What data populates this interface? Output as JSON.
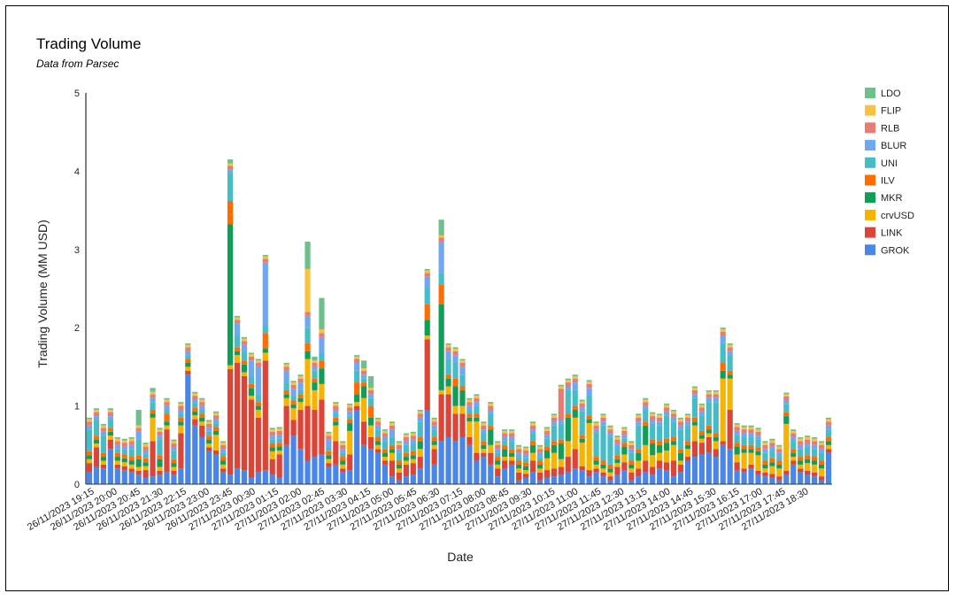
{
  "chart_data": {
    "type": "bar",
    "stacked": true,
    "title": "Trading Volume",
    "subtitle": "Data from Parsec",
    "xlabel": "Date",
    "ylabel": "Trading Volume (MM USD)",
    "ylim": [
      0,
      5
    ],
    "yticks": [
      0,
      1,
      2,
      3,
      4,
      5
    ],
    "grid": false,
    "legend_position": "right",
    "tick_labels": [
      "26/11/2023 19:15",
      "26/11/2023 20:00",
      "26/11/2023 20:45",
      "26/11/2023 21:30",
      "26/11/2023 22:15",
      "26/11/2023 23:00",
      "26/11/2023 23:45",
      "27/11/2023 00:30",
      "27/11/2023 01:15",
      "27/11/2023 02:00",
      "27/11/2023 02:45",
      "27/11/2023 03:30",
      "27/11/2023 04:15",
      "27/11/2023 05:00",
      "27/11/2023 05:45",
      "27/11/2023 06:30",
      "27/11/2023 07:15",
      "27/11/2023 08:00",
      "27/11/2023 08:45",
      "27/11/2023 09:30",
      "27/11/2023 10:15",
      "27/11/2023 11:00",
      "27/11/2023 11:45",
      "27/11/2023 12:30",
      "27/11/2023 13:15",
      "27/11/2023 14:00",
      "27/11/2023 14:45",
      "27/11/2023 15:30",
      "27/11/2023 16:15",
      "27/11/2023 17:00",
      "27/11/2023 17:45",
      "27/11/2023 18:30"
    ],
    "series": [
      {
        "name": "GROK",
        "color": "#4a86e8",
        "values": [
          0.15,
          0.22,
          0.2,
          0.45,
          0.2,
          0.18,
          0.15,
          0.12,
          0.08,
          0.1,
          0.12,
          0.15,
          0.12,
          0.2,
          1.4,
          0.75,
          0.6,
          0.42,
          0.38,
          0.15,
          0.12,
          0.2,
          0.18,
          0.08,
          0.15,
          0.18,
          0.12,
          0.08,
          0.5,
          0.62,
          0.45,
          0.3,
          0.35,
          0.38,
          0.22,
          0.25,
          0.15,
          0.18,
          0.95,
          0.5,
          0.45,
          0.4,
          0.25,
          0.1,
          0.05,
          0.1,
          0.12,
          0.2,
          0.95,
          0.25,
          0.55,
          0.6,
          0.55,
          0.6,
          0.5,
          0.3,
          0.35,
          0.25,
          0.1,
          0.2,
          0.25,
          0.05,
          0.08,
          0.15,
          0.05,
          0.08,
          0.1,
          0.12,
          0.15,
          0.2,
          0.18,
          0.1,
          0.15,
          0.1,
          0.05,
          0.12,
          0.18,
          0.05,
          0.1,
          0.15,
          0.12,
          0.2,
          0.18,
          0.1,
          0.15,
          0.3,
          0.35,
          0.38,
          0.4,
          0.35,
          0.5,
          0.45,
          0.18,
          0.15,
          0.2,
          0.12,
          0.1,
          0.08,
          0.05,
          0.12,
          0.25,
          0.15,
          0.12,
          0.1,
          0.05,
          0.4
        ]
      },
      {
        "name": "LINK",
        "color": "#db4437",
        "values": [
          0.12,
          0.25,
          0.05,
          0.12,
          0.05,
          0.05,
          0.05,
          0.05,
          0.1,
          0.45,
          0.05,
          0.55,
          0.05,
          0.45,
          0.05,
          0.08,
          0.15,
          0.05,
          0.05,
          0.05,
          1.35,
          1.35,
          1.2,
          1.0,
          0.7,
          1.4,
          0.2,
          0.3,
          0.5,
          0.2,
          0.5,
          0.7,
          0.6,
          0.7,
          0.05,
          0.3,
          0.05,
          0.2,
          0.05,
          0.3,
          0.15,
          0.05,
          0.05,
          0.2,
          0.1,
          0.15,
          0.15,
          0.15,
          0.9,
          0.2,
          0.6,
          0.55,
          0.35,
          0.3,
          0.1,
          0.1,
          0.05,
          0.15,
          0.1,
          0.1,
          0.05,
          0.1,
          0.05,
          0.15,
          0.1,
          0.1,
          0.1,
          0.1,
          0.2,
          0.25,
          0.05,
          0.08,
          0.05,
          0.05,
          0.05,
          0.1,
          0.1,
          0.1,
          0.1,
          0.15,
          0.1,
          0.1,
          0.1,
          0.2,
          0.1,
          0.05,
          0.2,
          0.15,
          0.2,
          0.1,
          0.05,
          0.5,
          0.1,
          0.05,
          0.05,
          0.05,
          0.05,
          0.05,
          0.05,
          0.05,
          0.05,
          0.05,
          0.05,
          0.05,
          0.05,
          0.05
        ]
      },
      {
        "name": "crvUSD",
        "color": "#f4b400",
        "values": [
          0.05,
          0.05,
          0.05,
          0.05,
          0.05,
          0.05,
          0.05,
          0.05,
          0.05,
          0.3,
          0.05,
          0.05,
          0.05,
          0.1,
          0.05,
          0.05,
          0.05,
          0.05,
          0.2,
          0.05,
          0.05,
          0.1,
          0.05,
          0.05,
          0.1,
          0.1,
          0.1,
          0.05,
          0.1,
          0.15,
          0.1,
          0.6,
          0.25,
          0.2,
          0.05,
          0.2,
          0.05,
          0.3,
          0.05,
          0.3,
          0.15,
          0.05,
          0.05,
          0.1,
          0.05,
          0.05,
          0.05,
          0.1,
          0.05,
          0.05,
          0.05,
          0.1,
          0.1,
          0.1,
          0.2,
          0.4,
          0.05,
          0.1,
          0.05,
          0.05,
          0.05,
          0.05,
          0.05,
          0.1,
          0.05,
          0.15,
          0.2,
          0.1,
          0.2,
          0.4,
          0.3,
          0.6,
          0.05,
          0.05,
          0.05,
          0.05,
          0.1,
          0.05,
          0.1,
          0.2,
          0.15,
          0.1,
          0.15,
          0.2,
          0.05,
          0.1,
          0.2,
          0.05,
          0.05,
          0.1,
          0.8,
          0.4,
          0.1,
          0.2,
          0.15,
          0.2,
          0.05,
          0.1,
          0.1,
          0.6,
          0.05,
          0.05,
          0.1,
          0.1,
          0.1,
          0.05
        ]
      },
      {
        "name": "MKR",
        "color": "#0f9d58",
        "values": [
          0.05,
          0.05,
          0.05,
          0.05,
          0.05,
          0.05,
          0.05,
          0.1,
          0.05,
          0.05,
          0.1,
          0.05,
          0.05,
          0.05,
          0.05,
          0.05,
          0.05,
          0.05,
          0.05,
          0.05,
          1.8,
          0.05,
          0.1,
          0.1,
          0.05,
          0.05,
          0.05,
          0.05,
          0.05,
          0.05,
          0.05,
          0.1,
          0.1,
          0.2,
          0.05,
          0.05,
          0.05,
          0.1,
          0.1,
          0.15,
          0.1,
          0.05,
          0.05,
          0.05,
          0.05,
          0.05,
          0.05,
          0.1,
          0.2,
          0.05,
          1.1,
          0.1,
          0.25,
          0.2,
          0.05,
          0.05,
          0.05,
          0.2,
          0.05,
          0.1,
          0.05,
          0.05,
          0.05,
          0.1,
          0.05,
          0.1,
          0.1,
          0.2,
          0.3,
          0.1,
          0.05,
          0.05,
          0.05,
          0.05,
          0.05,
          0.05,
          0.1,
          0.05,
          0.1,
          0.25,
          0.15,
          0.1,
          0.1,
          0.05,
          0.1,
          0.05,
          0.05,
          0.05,
          0.05,
          0.05,
          0.1,
          0.05,
          0.1,
          0.05,
          0.05,
          0.05,
          0.05,
          0.05,
          0.05,
          0.1,
          0.05,
          0.05,
          0.05,
          0.05,
          0.05,
          0.05
        ]
      },
      {
        "name": "ILV",
        "color": "#ff6d00",
        "values": [
          0.05,
          0.05,
          0.05,
          0.05,
          0.05,
          0.05,
          0.05,
          0.05,
          0.05,
          0.05,
          0.05,
          0.1,
          0.05,
          0.05,
          0.05,
          0.05,
          0.05,
          0.05,
          0.05,
          0.05,
          0.3,
          0.05,
          0.05,
          0.05,
          0.05,
          0.2,
          0.05,
          0.05,
          0.05,
          0.05,
          0.05,
          0.1,
          0.05,
          0.1,
          0.05,
          0.05,
          0.05,
          0.05,
          0.15,
          0.05,
          0.15,
          0.05,
          0.05,
          0.05,
          0.05,
          0.05,
          0.05,
          0.05,
          0.2,
          0.05,
          0.25,
          0.05,
          0.1,
          0.05,
          0.05,
          0.05,
          0.05,
          0.05,
          0.05,
          0.05,
          0.05,
          0.05,
          0.05,
          0.05,
          0.05,
          0.05,
          0.05,
          0.05,
          0.05,
          0.05,
          0.05,
          0.05,
          0.05,
          0.05,
          0.05,
          0.05,
          0.05,
          0.05,
          0.05,
          0.05,
          0.05,
          0.05,
          0.05,
          0.05,
          0.05,
          0.05,
          0.05,
          0.05,
          0.05,
          0.05,
          0.1,
          0.05,
          0.05,
          0.05,
          0.05,
          0.05,
          0.05,
          0.05,
          0.05,
          0.05,
          0.05,
          0.05,
          0.05,
          0.05,
          0.05,
          0.05
        ]
      },
      {
        "name": "UNI",
        "color": "#46bdc6",
        "values": [
          0.28,
          0.2,
          0.22,
          0.1,
          0.05,
          0.05,
          0.1,
          0.2,
          0.05,
          0.1,
          0.2,
          0.05,
          0.1,
          0.05,
          0.05,
          0.05,
          0.05,
          0.05,
          0.05,
          0.05,
          0.35,
          0.15,
          0.1,
          0.1,
          0.1,
          0.1,
          0.05,
          0.05,
          0.1,
          0.05,
          0.05,
          0.2,
          0.1,
          0.1,
          0.05,
          0.05,
          0.05,
          0.05,
          0.15,
          0.05,
          0.1,
          0.1,
          0.1,
          0.1,
          0.1,
          0.1,
          0.1,
          0.2,
          0.2,
          0.1,
          0.15,
          0.2,
          0.2,
          0.15,
          0.05,
          0.1,
          0.1,
          0.15,
          0.05,
          0.05,
          0.1,
          0.05,
          0.05,
          0.1,
          0.05,
          0.1,
          0.2,
          0.2,
          0.3,
          0.2,
          0.3,
          0.25,
          0.3,
          0.45,
          0.35,
          0.1,
          0.05,
          0.1,
          0.3,
          0.15,
          0.2,
          0.2,
          0.3,
          0.2,
          0.25,
          0.2,
          0.25,
          0.2,
          0.3,
          0.4,
          0.25,
          0.2,
          0.1,
          0.1,
          0.1,
          0.1,
          0.1,
          0.1,
          0.05,
          0.1,
          0.1,
          0.1,
          0.1,
          0.1,
          0.1,
          0.1
        ]
      },
      {
        "name": "BLUR",
        "color": "#6fa8f0",
        "values": [
          0.05,
          0.05,
          0.05,
          0.05,
          0.05,
          0.05,
          0.05,
          0.1,
          0.05,
          0.05,
          0.05,
          0.05,
          0.05,
          0.05,
          0.05,
          0.05,
          0.05,
          0.05,
          0.05,
          0.05,
          0.05,
          0.15,
          0.1,
          0.2,
          0.35,
          0.8,
          0.05,
          0.05,
          0.15,
          0.1,
          0.1,
          0.15,
          0.05,
          0.2,
          0.1,
          0.05,
          0.05,
          0.05,
          0.1,
          0.05,
          0.05,
          0.05,
          0.05,
          0.1,
          0.05,
          0.05,
          0.05,
          0.05,
          0.15,
          0.05,
          0.4,
          0.1,
          0.1,
          0.1,
          0.05,
          0.05,
          0.05,
          0.05,
          0.05,
          0.05,
          0.05,
          0.05,
          0.05,
          0.05,
          0.05,
          0.05,
          0.05,
          0.05,
          0.05,
          0.1,
          0.05,
          0.1,
          0.05,
          0.05,
          0.05,
          0.05,
          0.05,
          0.05,
          0.05,
          0.05,
          0.05,
          0.05,
          0.05,
          0.05,
          0.05,
          0.05,
          0.05,
          0.05,
          0.05,
          0.05,
          0.1,
          0.05,
          0.05,
          0.05,
          0.05,
          0.05,
          0.05,
          0.05,
          0.05,
          0.05,
          0.05,
          0.05,
          0.05,
          0.05,
          0.05,
          0.05
        ]
      },
      {
        "name": "RLB",
        "color": "#e67c73",
        "values": [
          0.05,
          0.05,
          0.05,
          0.05,
          0.05,
          0.05,
          0.05,
          0.05,
          0.05,
          0.05,
          0.05,
          0.05,
          0.05,
          0.05,
          0.05,
          0.05,
          0.05,
          0.05,
          0.05,
          0.05,
          0.05,
          0.05,
          0.05,
          0.05,
          0.05,
          0.05,
          0.05,
          0.05,
          0.05,
          0.05,
          0.05,
          0.05,
          0.05,
          0.05,
          0.05,
          0.05,
          0.05,
          0.05,
          0.05,
          0.05,
          0.05,
          0.05,
          0.05,
          0.05,
          0.05,
          0.05,
          0.05,
          0.05,
          0.05,
          0.05,
          0.05,
          0.05,
          0.05,
          0.05,
          0.05,
          0.05,
          0.05,
          0.05,
          0.05,
          0.05,
          0.05,
          0.05,
          0.05,
          0.05,
          0.05,
          0.05,
          0.05,
          0.4,
          0.05,
          0.05,
          0.05,
          0.05,
          0.05,
          0.05,
          0.05,
          0.05,
          0.05,
          0.05,
          0.05,
          0.05,
          0.05,
          0.05,
          0.05,
          0.05,
          0.05,
          0.05,
          0.05,
          0.05,
          0.05,
          0.05,
          0.05,
          0.05,
          0.05,
          0.05,
          0.05,
          0.05,
          0.05,
          0.05,
          0.05,
          0.05,
          0.05,
          0.05,
          0.05,
          0.05,
          0.05,
          0.05
        ]
      },
      {
        "name": "FLIP",
        "color": "#f6c343",
        "values": [
          0.03,
          0.03,
          0.03,
          0.03,
          0.03,
          0.03,
          0.03,
          0.03,
          0.03,
          0.03,
          0.03,
          0.03,
          0.03,
          0.03,
          0.03,
          0.03,
          0.03,
          0.03,
          0.03,
          0.03,
          0.03,
          0.03,
          0.03,
          0.03,
          0.03,
          0.03,
          0.03,
          0.03,
          0.03,
          0.03,
          0.03,
          0.55,
          0.03,
          0.05,
          0.03,
          0.03,
          0.03,
          0.03,
          0.03,
          0.03,
          0.03,
          0.03,
          0.03,
          0.03,
          0.03,
          0.03,
          0.03,
          0.03,
          0.03,
          0.03,
          0.03,
          0.03,
          0.03,
          0.03,
          0.03,
          0.03,
          0.03,
          0.03,
          0.03,
          0.03,
          0.03,
          0.03,
          0.03,
          0.03,
          0.03,
          0.03,
          0.03,
          0.03,
          0.03,
          0.03,
          0.03,
          0.03,
          0.03,
          0.03,
          0.03,
          0.03,
          0.03,
          0.03,
          0.03,
          0.03,
          0.03,
          0.03,
          0.03,
          0.03,
          0.03,
          0.03,
          0.03,
          0.03,
          0.03,
          0.03,
          0.03,
          0.03,
          0.03,
          0.03,
          0.03,
          0.03,
          0.03,
          0.03,
          0.03,
          0.03,
          0.03,
          0.03,
          0.03,
          0.03,
          0.03,
          0.03
        ]
      },
      {
        "name": "LDO",
        "color": "#6dbf8c",
        "values": [
          0.02,
          0.02,
          0.02,
          0.02,
          0.02,
          0.02,
          0.02,
          0.2,
          0.02,
          0.05,
          0.02,
          0.02,
          0.02,
          0.02,
          0.02,
          0.02,
          0.02,
          0.02,
          0.02,
          0.02,
          0.05,
          0.02,
          0.02,
          0.02,
          0.02,
          0.02,
          0.02,
          0.02,
          0.02,
          0.02,
          0.02,
          0.35,
          0.05,
          0.4,
          0.02,
          0.02,
          0.02,
          0.02,
          0.02,
          0.1,
          0.15,
          0.02,
          0.02,
          0.02,
          0.02,
          0.02,
          0.02,
          0.02,
          0.02,
          0.02,
          0.2,
          0.02,
          0.02,
          0.02,
          0.02,
          0.02,
          0.02,
          0.02,
          0.02,
          0.02,
          0.02,
          0.02,
          0.02,
          0.02,
          0.02,
          0.02,
          0.02,
          0.02,
          0.02,
          0.02,
          0.02,
          0.02,
          0.02,
          0.02,
          0.02,
          0.02,
          0.02,
          0.02,
          0.02,
          0.02,
          0.02,
          0.02,
          0.02,
          0.02,
          0.02,
          0.02,
          0.02,
          0.02,
          0.02,
          0.02,
          0.02,
          0.02,
          0.02,
          0.02,
          0.02,
          0.02,
          0.02,
          0.02,
          0.02,
          0.02,
          0.02,
          0.02,
          0.02,
          0.02,
          0.02,
          0.02
        ]
      }
    ]
  }
}
